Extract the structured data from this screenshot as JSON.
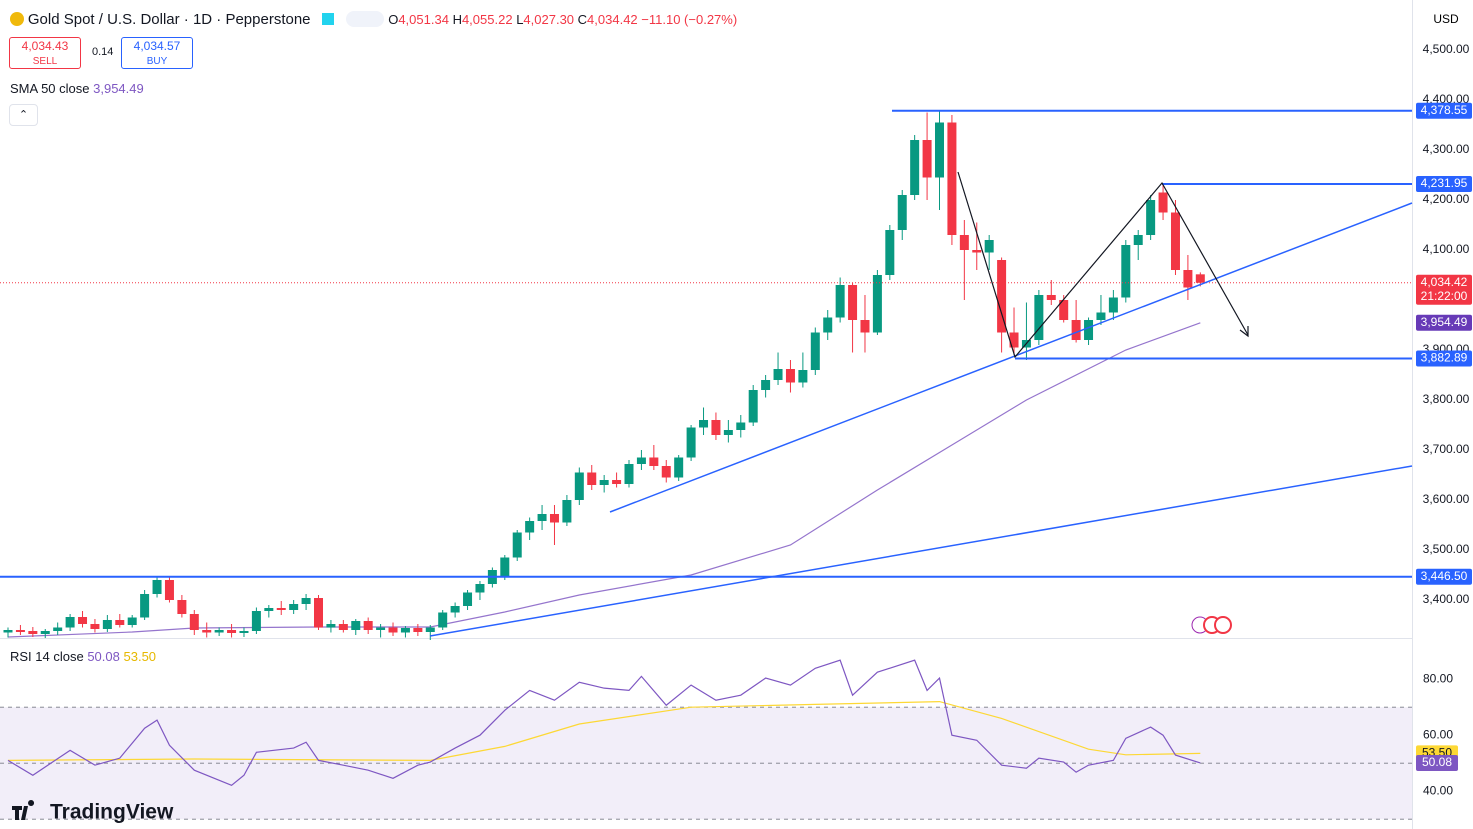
{
  "header": {
    "title": "Gold Spot / U.S. Dollar · 1D · Pepperstone",
    "ohlc": [
      {
        "letter": "O",
        "value": "4,051.34"
      },
      {
        "letter": "H",
        "value": "4,055.22"
      },
      {
        "letter": "L",
        "value": "4,027.30"
      },
      {
        "letter": "C",
        "value": "4,034.42"
      }
    ],
    "change": "−11.10 (−0.27%)",
    "sell_price": "4,034.43",
    "sell": "SELL",
    "spread": "0.14",
    "buy_price": "4,034.57",
    "buy": "BUY",
    "currency": "USD",
    "brand": "TradingView"
  },
  "chart_data": {
    "type": "candlestick",
    "up_color": "#089981",
    "down_color": "#f23645",
    "ylim": [
      3324,
      4600
    ],
    "yticks": [
      {
        "value": 4500,
        "label": "4,500.00"
      },
      {
        "value": 4400,
        "label": "4,400.00"
      },
      {
        "value": 4300,
        "label": "4,300.00"
      },
      {
        "value": 4200,
        "label": "4,200.00"
      },
      {
        "value": 4100,
        "label": "4,100.00"
      },
      {
        "value": 4000,
        "label": "4,000.00"
      },
      {
        "value": 3900,
        "label": "3,900.00"
      },
      {
        "value": 3800,
        "label": "3,800.00"
      },
      {
        "value": 3700,
        "label": "3,700.00"
      },
      {
        "value": 3600,
        "label": "3,600.00"
      },
      {
        "value": 3500,
        "label": "3,500.00"
      },
      {
        "value": 3400,
        "label": "3,400.00"
      }
    ],
    "ohlc": [
      [
        3335,
        3345,
        3325,
        3340
      ],
      [
        3340,
        3350,
        3330,
        3336
      ],
      [
        3338,
        3346,
        3326,
        3332
      ],
      [
        3332,
        3342,
        3324,
        3338
      ],
      [
        3338,
        3355,
        3330,
        3345
      ],
      [
        3345,
        3372,
        3338,
        3366
      ],
      [
        3366,
        3378,
        3345,
        3352
      ],
      [
        3352,
        3362,
        3335,
        3342
      ],
      [
        3342,
        3370,
        3336,
        3360
      ],
      [
        3360,
        3372,
        3345,
        3350
      ],
      [
        3350,
        3370,
        3345,
        3365
      ],
      [
        3365,
        3420,
        3360,
        3412
      ],
      [
        3412,
        3445,
        3405,
        3440
      ],
      [
        3440,
        3448,
        3395,
        3400
      ],
      [
        3400,
        3410,
        3365,
        3372
      ],
      [
        3372,
        3380,
        3330,
        3340
      ],
      [
        3340,
        3355,
        3325,
        3335
      ],
      [
        3335,
        3345,
        3328,
        3340
      ],
      [
        3340,
        3352,
        3325,
        3334
      ],
      [
        3334,
        3345,
        3326,
        3338
      ],
      [
        3338,
        3385,
        3332,
        3378
      ],
      [
        3378,
        3390,
        3365,
        3384
      ],
      [
        3384,
        3398,
        3370,
        3380
      ],
      [
        3380,
        3400,
        3372,
        3392
      ],
      [
        3392,
        3412,
        3380,
        3404
      ],
      [
        3404,
        3410,
        3340,
        3345
      ],
      [
        3345,
        3360,
        3335,
        3352
      ],
      [
        3352,
        3360,
        3335,
        3340
      ],
      [
        3340,
        3362,
        3330,
        3358
      ],
      [
        3358,
        3365,
        3332,
        3340
      ],
      [
        3340,
        3352,
        3325,
        3345
      ],
      [
        3345,
        3355,
        3328,
        3335
      ],
      [
        3335,
        3348,
        3325,
        3344
      ],
      [
        3344,
        3352,
        3328,
        3336
      ],
      [
        3336,
        3350,
        3320,
        3345
      ],
      [
        3345,
        3380,
        3340,
        3375
      ],
      [
        3375,
        3395,
        3365,
        3388
      ],
      [
        3388,
        3420,
        3380,
        3415
      ],
      [
        3415,
        3438,
        3400,
        3432
      ],
      [
        3432,
        3465,
        3425,
        3460
      ],
      [
        3448,
        3490,
        3440,
        3485
      ],
      [
        3485,
        3540,
        3478,
        3535
      ],
      [
        3535,
        3565,
        3520,
        3558
      ],
      [
        3558,
        3590,
        3540,
        3572
      ],
      [
        3572,
        3590,
        3510,
        3555
      ],
      [
        3555,
        3610,
        3548,
        3600
      ],
      [
        3600,
        3665,
        3590,
        3655
      ],
      [
        3655,
        3670,
        3620,
        3630
      ],
      [
        3630,
        3650,
        3615,
        3640
      ],
      [
        3640,
        3655,
        3625,
        3632
      ],
      [
        3632,
        3680,
        3625,
        3672
      ],
      [
        3672,
        3700,
        3660,
        3685
      ],
      [
        3685,
        3710,
        3660,
        3668
      ],
      [
        3668,
        3680,
        3635,
        3645
      ],
      [
        3645,
        3690,
        3638,
        3685
      ],
      [
        3685,
        3750,
        3678,
        3745
      ],
      [
        3745,
        3785,
        3730,
        3760
      ],
      [
        3760,
        3775,
        3720,
        3730
      ],
      [
        3730,
        3760,
        3715,
        3740
      ],
      [
        3740,
        3770,
        3725,
        3755
      ],
      [
        3755,
        3830,
        3748,
        3820
      ],
      [
        3820,
        3850,
        3805,
        3840
      ],
      [
        3840,
        3895,
        3830,
        3862
      ],
      [
        3862,
        3880,
        3815,
        3835
      ],
      [
        3835,
        3895,
        3825,
        3860
      ],
      [
        3860,
        3945,
        3850,
        3935
      ],
      [
        3935,
        3980,
        3920,
        3965
      ],
      [
        3965,
        4045,
        3955,
        4030
      ],
      [
        4030,
        4035,
        3895,
        3960
      ],
      [
        3960,
        4010,
        3895,
        3935
      ],
      [
        3935,
        4060,
        3930,
        4050
      ],
      [
        4050,
        4150,
        4040,
        4140
      ],
      [
        4140,
        4220,
        4120,
        4210
      ],
      [
        4210,
        4330,
        4200,
        4320
      ],
      [
        4320,
        4375,
        4200,
        4245
      ],
      [
        4245,
        4380,
        4180,
        4355
      ],
      [
        4355,
        4370,
        4110,
        4130
      ],
      [
        4130,
        4160,
        4000,
        4100
      ],
      [
        4100,
        4155,
        4060,
        4095
      ],
      [
        4095,
        4130,
        4060,
        4120
      ],
      [
        4080,
        4085,
        3895,
        3935
      ],
      [
        3935,
        3985,
        3890,
        3905
      ],
      [
        3905,
        3995,
        3880,
        3920
      ],
      [
        3920,
        4020,
        3910,
        4010
      ],
      [
        4010,
        4040,
        3990,
        4000
      ],
      [
        4000,
        4010,
        3955,
        3960
      ],
      [
        3960,
        4000,
        3915,
        3920
      ],
      [
        3920,
        3965,
        3910,
        3960
      ],
      [
        3960,
        4010,
        3950,
        3975
      ],
      [
        3975,
        4020,
        3960,
        4005
      ],
      [
        4005,
        4120,
        3995,
        4110
      ],
      [
        4110,
        4140,
        4080,
        4130
      ],
      [
        4130,
        4210,
        4120,
        4200
      ],
      [
        4215,
        4232,
        4160,
        4175
      ],
      [
        4175,
        4200,
        4050,
        4060
      ],
      [
        4060,
        4090,
        4000,
        4025
      ],
      [
        4051.34,
        4055.22,
        4027.3,
        4034.42
      ]
    ],
    "sma": {
      "title": "SMA 50 close",
      "label": "3,954.49",
      "color": "#9575cd",
      "x": [
        0,
        10,
        15,
        25,
        34,
        40,
        46,
        55,
        63,
        70,
        76,
        82,
        90,
        96
      ],
      "values": [
        3326,
        3336,
        3344,
        3346,
        3346,
        3376,
        3410,
        3450,
        3510,
        3620,
        3710,
        3800,
        3900,
        3954.49
      ]
    },
    "levels": [
      {
        "value": 4378.55,
        "label": "4,378.55"
      },
      {
        "value": 4231.95,
        "label": "4,231.95"
      },
      {
        "value": 3882.89,
        "label": "3,882.89"
      },
      {
        "value": 3446.5,
        "label": "3,446.50"
      }
    ],
    "level_color": "#2962ff",
    "current": {
      "value": 4034.42,
      "label": "4,034.42",
      "countdown": "21:22:00"
    },
    "rsi": {
      "title": "RSI 14 close",
      "label": "50.08",
      "ma_label": "53.50",
      "color": "#7e57c2",
      "ma_color": "#fdd835",
      "ylim": [
        29,
        94
      ],
      "yticks": [
        {
          "value": 80,
          "label": "80.00"
        },
        {
          "value": 60,
          "label": "60.00"
        },
        {
          "value": 40,
          "label": "40.00"
        }
      ],
      "bands": [
        70,
        50,
        30
      ],
      "x": [
        0,
        2,
        5,
        7,
        9,
        11,
        12,
        13,
        15,
        18,
        19,
        20,
        23,
        24,
        25,
        27,
        29,
        31,
        33,
        34,
        36,
        38,
        40,
        42,
        44,
        46,
        48,
        50,
        51,
        53,
        55,
        57,
        59,
        61,
        63,
        65,
        67,
        68,
        70,
        73,
        74,
        75,
        76,
        78,
        80,
        82,
        83,
        85,
        86,
        87,
        89,
        90,
        92,
        93,
        94,
        96
      ],
      "values": [
        51,
        45.7,
        54.6,
        49.3,
        51.8,
        62.5,
        65.4,
        56.4,
        47.5,
        42.1,
        45.7,
        53.9,
        55.4,
        57.5,
        51,
        49.3,
        47.5,
        44.6,
        49.3,
        50.4,
        55.4,
        60,
        68.9,
        76,
        72.5,
        78.9,
        76.8,
        76,
        81,
        70.7,
        77.9,
        72.5,
        74.3,
        80.4,
        77.9,
        83.9,
        86.8,
        74.3,
        82.5,
        86.8,
        76,
        80.4,
        60,
        58.2,
        49.3,
        48.2,
        51.8,
        50.4,
        46.8,
        49.3,
        51,
        58.9,
        62.9,
        60,
        52.9,
        50.08
      ],
      "ma_x": [
        0,
        15,
        34,
        40,
        46,
        55,
        65,
        75,
        80,
        87,
        90,
        96
      ],
      "ma_values": [
        51,
        51.5,
        51,
        56,
        64,
        70,
        71,
        72,
        66,
        55,
        53,
        53.5
      ]
    }
  }
}
